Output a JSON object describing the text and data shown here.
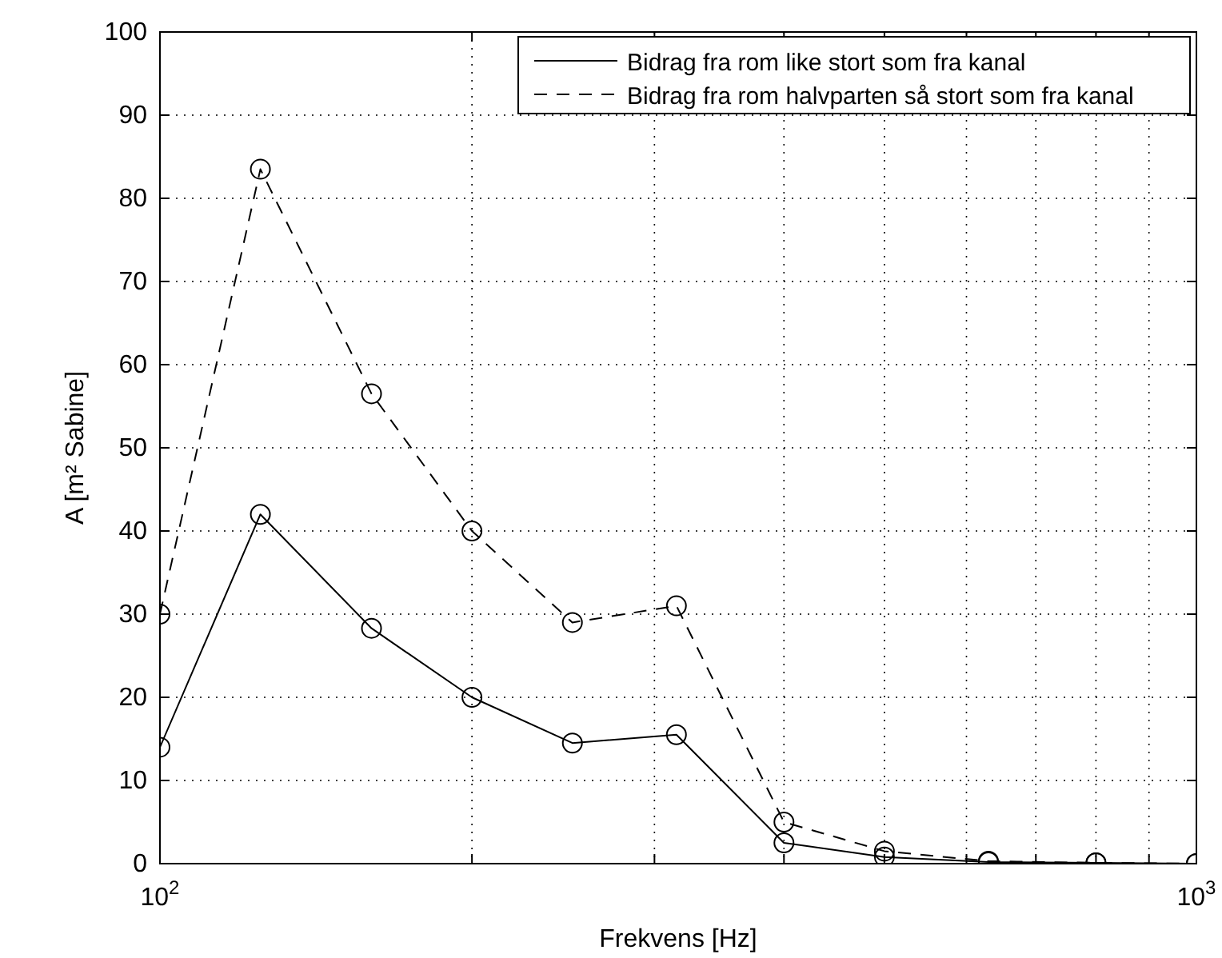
{
  "chart_data": {
    "type": "line",
    "xlabel": "Frekvens [Hz]",
    "ylabel": "A [m² Sabine]",
    "log": "x",
    "grid": true,
    "legend": "top right",
    "marker": "circle",
    "xlim": [
      100,
      1000
    ],
    "ylim": [
      0,
      100
    ],
    "xticks": [
      {
        "value": 100,
        "label": "10$^{2}$"
      },
      {
        "value": 200,
        "label": null
      },
      {
        "value": 300,
        "label": null
      },
      {
        "value": 400,
        "label": null
      },
      {
        "value": 500,
        "label": null
      },
      {
        "value": 600,
        "label": null
      },
      {
        "value": 700,
        "label": null
      },
      {
        "value": 800,
        "label": null
      },
      {
        "value": 900,
        "label": null
      },
      {
        "value": 1000,
        "label": "10$^{3}$"
      }
    ],
    "yticks": [
      0,
      10,
      20,
      30,
      40,
      50,
      60,
      70,
      80,
      90,
      100
    ],
    "x": [
      100,
      125,
      160,
      200,
      250,
      315,
      400,
      500,
      630,
      800,
      1000
    ],
    "series": [
      {
        "name": "Bidrag fra rom like stort som fra kanal",
        "color": "#000000",
        "line_style": "solid",
        "values": [
          14,
          42,
          28.3,
          20,
          14.5,
          15.5,
          2.5,
          0.8,
          0.2,
          0.1,
          0
        ]
      },
      {
        "name": "Bidrag fra rom halvparten så stort som fra kanal",
        "color": "#000000",
        "line_style": "dashed",
        "values": [
          30,
          83.5,
          56.5,
          40,
          29,
          31,
          5,
          1.5,
          0.3,
          0.1,
          0
        ]
      }
    ]
  }
}
